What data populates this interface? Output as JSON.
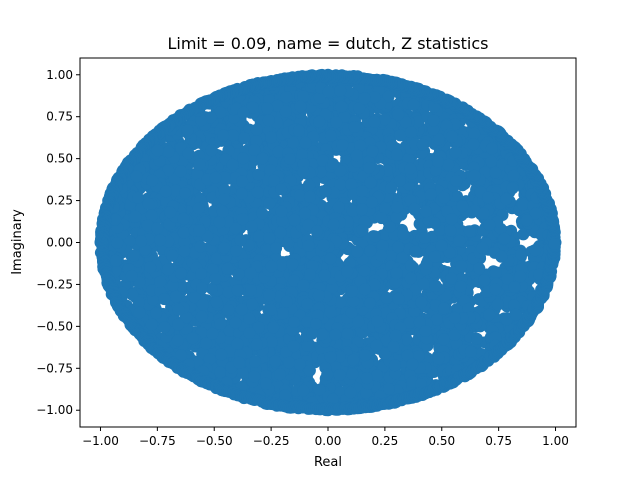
{
  "chart_data": {
    "type": "scatter",
    "title": "Limit = 0.09, name = dutch, Z statistics",
    "xlabel": "Real",
    "ylabel": "Imaginary",
    "xlim": [
      -1.09,
      1.09
    ],
    "ylim": [
      -1.1,
      1.1
    ],
    "x_ticks": [
      -1.0,
      -0.75,
      -0.5,
      -0.25,
      0.0,
      0.25,
      0.5,
      0.75,
      1.0
    ],
    "x_tick_labels": [
      "−1.00",
      "−0.75",
      "−0.50",
      "−0.25",
      "0.00",
      "0.25",
      "0.50",
      "0.75",
      "1.00"
    ],
    "y_ticks": [
      -1.0,
      -0.75,
      -0.5,
      -0.25,
      0.0,
      0.25,
      0.5,
      0.75,
      1.0
    ],
    "y_tick_labels": [
      "−1.00",
      "−0.75",
      "−0.50",
      "−0.25",
      "0.00",
      "0.25",
      "0.50",
      "0.75",
      "1.00"
    ],
    "grid": false,
    "legend": "none",
    "marker_color": "#1f77b4",
    "series": [
      {
        "description_points": [
          [
            0.0,
            0.0
          ],
          [
            1.0,
            0.0
          ],
          [
            -1.0,
            0.0
          ],
          [
            0.0,
            1.0
          ],
          [
            0.0,
            -1.0
          ],
          [
            0.5,
            0.0
          ],
          [
            -0.5,
            0.0
          ],
          [
            0.25,
            0.5
          ],
          [
            -0.25,
            -0.5
          ],
          [
            0.75,
            0.25
          ]
        ]
      }
    ]
  }
}
